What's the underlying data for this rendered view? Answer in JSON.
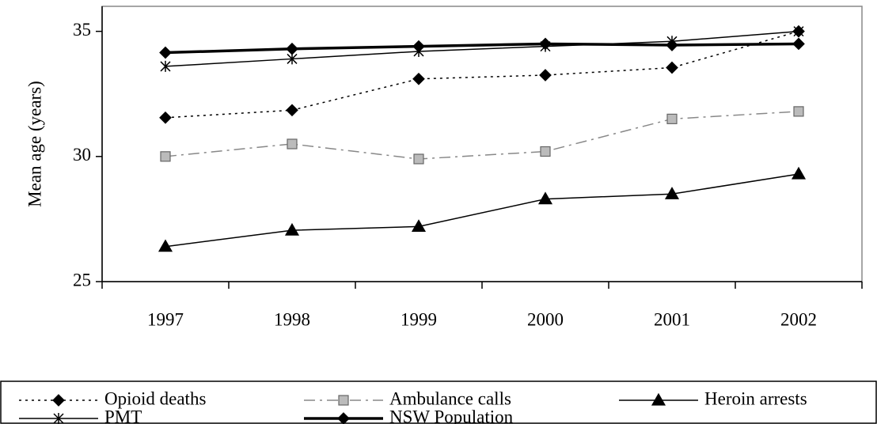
{
  "chart_data": {
    "type": "line",
    "y_label": "Mean age (years)",
    "categories": [
      "1997",
      "1998",
      "1999",
      "2000",
      "2001",
      "2002"
    ],
    "ylim": [
      25,
      36
    ],
    "yticks": [
      25,
      30,
      35
    ],
    "legend": "bottom",
    "series": [
      {
        "name": "Opioid deaths",
        "color": "#000000",
        "dash": "dotted",
        "width": 1.5,
        "marker": "diamond",
        "values": [
          31.55,
          31.85,
          33.1,
          33.25,
          33.55,
          35.0
        ]
      },
      {
        "name": "Ambulance calls",
        "color": "#888888",
        "marker_color": "#bbbbbb",
        "dash": "dashdot",
        "width": 1.5,
        "marker": "square",
        "values": [
          30.0,
          30.5,
          29.9,
          30.2,
          31.5,
          31.8
        ]
      },
      {
        "name": "Heroin arrests",
        "color": "#000000",
        "dash": "solid",
        "width": 1.5,
        "marker": "triangle",
        "values": [
          26.4,
          27.05,
          27.2,
          28.3,
          28.5,
          29.3
        ]
      },
      {
        "name": "PMT",
        "color": "#000000",
        "dash": "solid",
        "width": 1.5,
        "marker": "star",
        "values": [
          33.6,
          33.9,
          34.2,
          34.4,
          34.6,
          35.0
        ]
      },
      {
        "name": "NSW Population",
        "color": "#000000",
        "dash": "solid",
        "width": 3.5,
        "marker": "diamond",
        "values": [
          34.15,
          34.3,
          34.4,
          34.5,
          34.45,
          34.5
        ]
      }
    ]
  }
}
